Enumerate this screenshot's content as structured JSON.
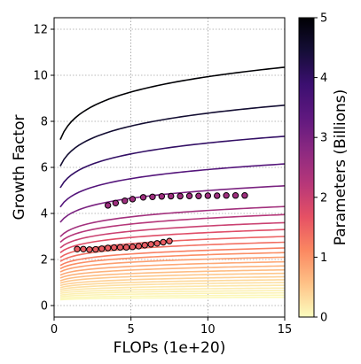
{
  "chart_data": {
    "type": "line",
    "title": "",
    "xlabel": "FLOPs (1e+20)",
    "ylabel": "Growth Factor",
    "xlim": [
      0,
      15
    ],
    "ylim": [
      -0.5,
      12.5
    ],
    "xticks": [
      0,
      5,
      10,
      15
    ],
    "yticks": [
      0,
      2,
      4,
      6,
      8,
      10,
      12
    ],
    "grid": true,
    "colorbar": {
      "label": "Parameters (Billions)",
      "range": [
        0,
        5
      ],
      "ticks": [
        0,
        1,
        2,
        3,
        4,
        5
      ],
      "colormap": "magma_r",
      "stops": [
        "#fcfdbf",
        "#fec287",
        "#fb8861",
        "#e65164",
        "#b73779",
        "#8c2981",
        "#5f187f",
        "#3b0f70",
        "#150e37",
        "#000004"
      ]
    },
    "curves": {
      "x_start": 0.4,
      "x_end": 15,
      "exponent": 0.1,
      "parameters_billions": [
        5.0,
        4.5,
        4.0,
        3.5,
        3.0,
        2.5,
        2.25,
        2.0,
        1.75,
        1.5,
        1.35,
        1.2,
        1.05,
        0.9,
        0.8,
        0.7,
        0.6,
        0.5,
        0.42,
        0.34,
        0.27,
        0.21,
        0.16,
        0.12,
        0.09,
        0.06,
        0.04
      ],
      "growth_at_x_end": [
        10.35,
        8.7,
        7.35,
        6.15,
        5.2,
        4.3,
        3.95,
        3.6,
        3.3,
        3.0,
        2.75,
        2.5,
        2.3,
        2.1,
        1.9,
        1.72,
        1.55,
        1.4,
        1.25,
        1.12,
        1.0,
        0.88,
        0.76,
        0.65,
        0.55,
        0.45,
        0.36
      ]
    },
    "scatter_series": [
      {
        "parameter_billions": 2.55,
        "x": [
          3.5,
          4.0,
          4.6,
          5.1,
          5.8,
          6.4,
          7.0,
          7.6,
          8.2,
          8.8,
          9.4,
          10.0,
          10.6,
          11.2,
          11.8,
          12.4
        ],
        "y": [
          4.35,
          4.45,
          4.55,
          4.62,
          4.7,
          4.72,
          4.74,
          4.75,
          4.75,
          4.76,
          4.76,
          4.77,
          4.77,
          4.78,
          4.78,
          4.78
        ]
      },
      {
        "parameter_billions": 1.55,
        "x": [
          1.5,
          1.9,
          2.3,
          2.7,
          3.1,
          3.5,
          3.9,
          4.3,
          4.7,
          5.1,
          5.5,
          5.9,
          6.3,
          6.7,
          7.1,
          7.5
        ],
        "y": [
          2.45,
          2.45,
          2.43,
          2.44,
          2.47,
          2.5,
          2.52,
          2.53,
          2.53,
          2.55,
          2.58,
          2.62,
          2.66,
          2.7,
          2.75,
          2.8
        ]
      }
    ]
  }
}
